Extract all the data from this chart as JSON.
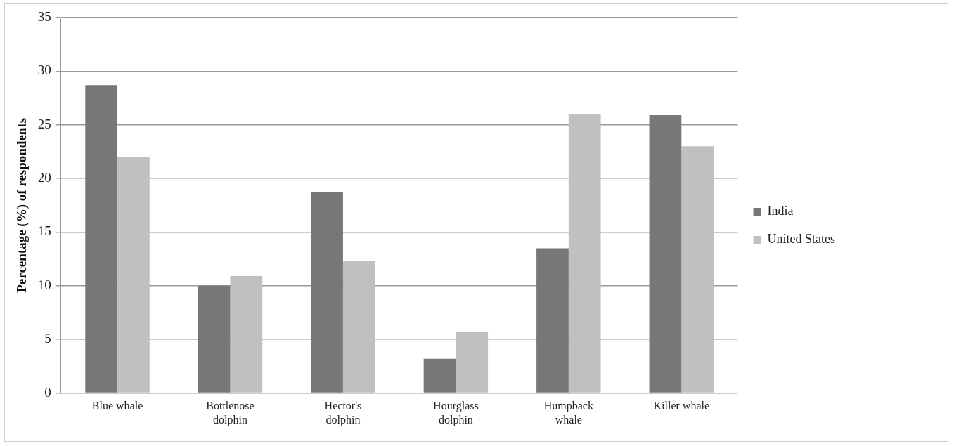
{
  "chart_data": {
    "type": "bar",
    "ylabel": "Percentage (%) of respondents",
    "categories": [
      "Blue whale",
      "Bottlenose dolphin",
      "Hector's dolphin",
      "Hourglass dolphin",
      "Humpback whale",
      "Killer whale"
    ],
    "series": [
      {
        "name": "India",
        "color": "#777777",
        "values": [
          28.7,
          10.0,
          18.7,
          3.2,
          13.5,
          25.9
        ]
      },
      {
        "name": "United States",
        "color": "#c0c0c0",
        "values": [
          22.0,
          10.9,
          12.3,
          5.7,
          26.0,
          23.0
        ]
      }
    ],
    "ylim": [
      0,
      35
    ],
    "yticks": [
      0,
      5,
      10,
      15,
      20,
      25,
      30,
      35
    ],
    "grid": "y",
    "legend": "right"
  }
}
